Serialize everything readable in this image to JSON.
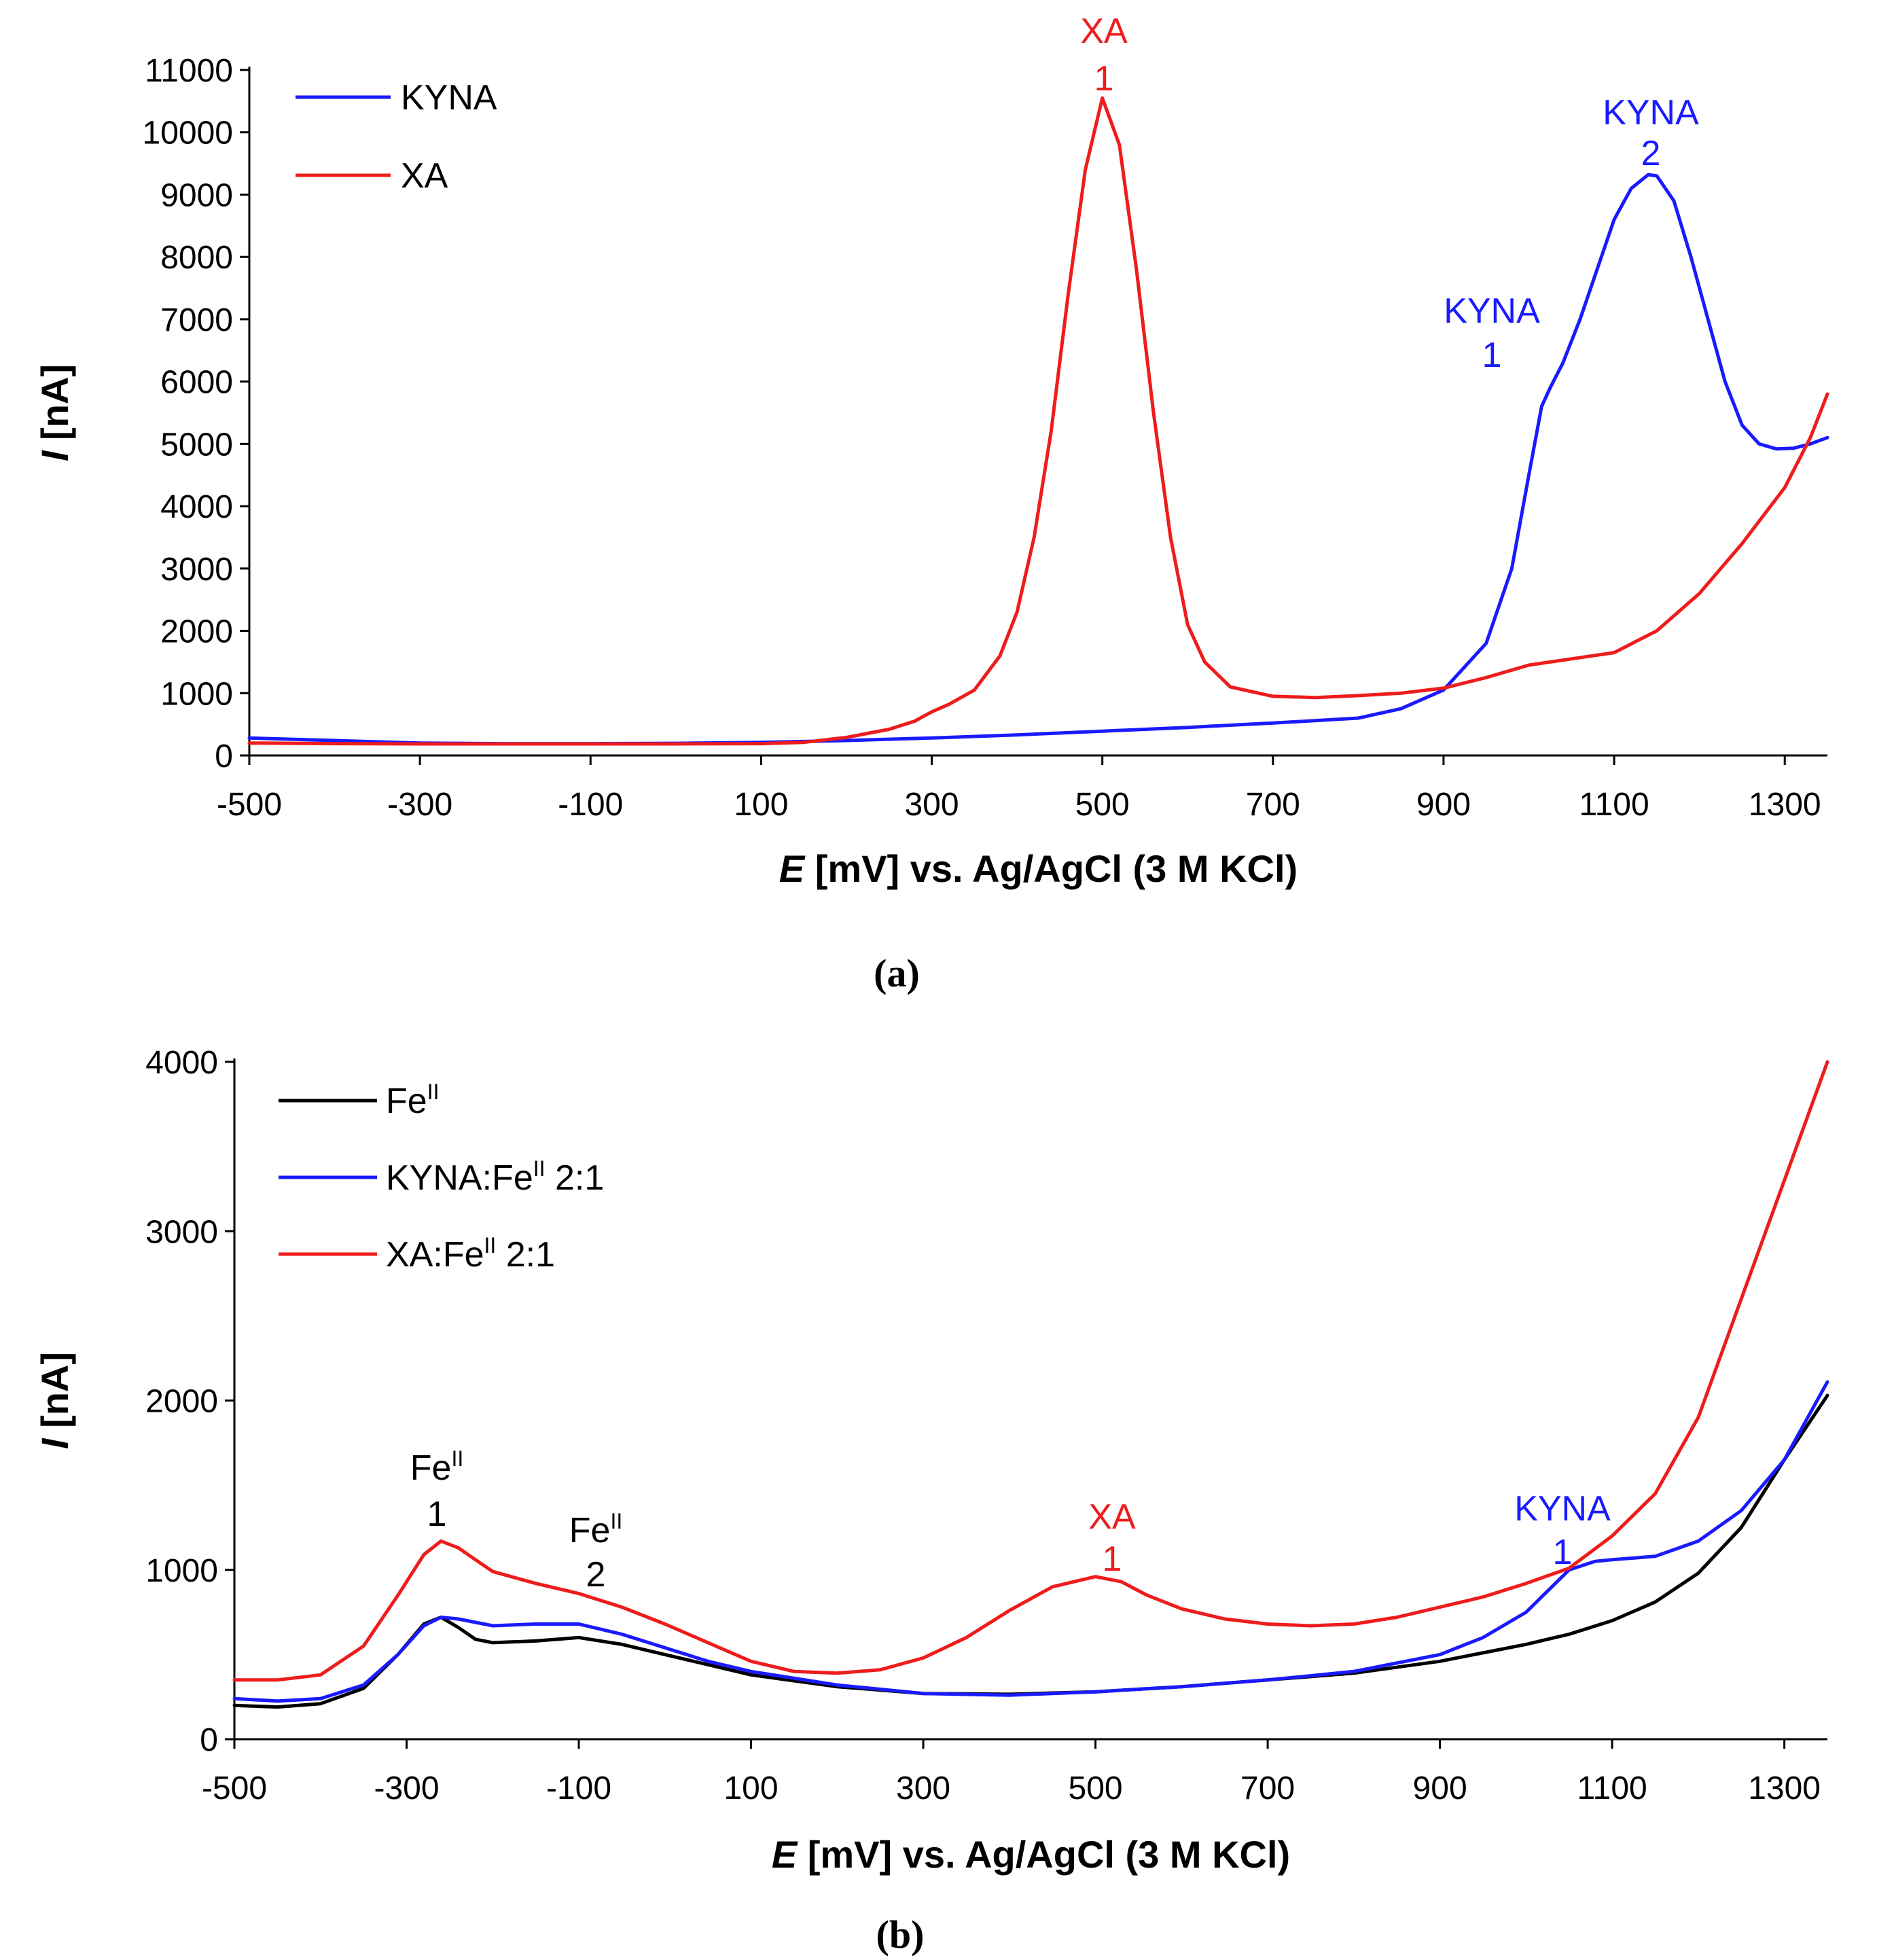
{
  "chart_data": [
    {
      "type": "line",
      "panel_label": "(a)",
      "xlabel_italic": "E",
      "xlabel_rest": " [mV] vs. Ag/AgCl (3 M KCl)",
      "ylabel_italic": "I",
      "ylabel_rest": " [nA]",
      "xlim": [
        -500,
        1350
      ],
      "ylim": [
        0,
        11000
      ],
      "xticks": [
        -500,
        -300,
        -100,
        100,
        300,
        500,
        700,
        900,
        1100,
        1300
      ],
      "yticks": [
        0,
        1000,
        2000,
        3000,
        4000,
        5000,
        6000,
        7000,
        8000,
        9000,
        10000,
        11000
      ],
      "grid": false,
      "legend_position": "top-left",
      "series": [
        {
          "name": "KYNA",
          "color": "#1a1aff",
          "x": [
            -500,
            -400,
            -300,
            -200,
            -100,
            0,
            100,
            200,
            300,
            400,
            500,
            600,
            700,
            800,
            850,
            900,
            950,
            980,
            1000,
            1015,
            1025,
            1040,
            1060,
            1080,
            1100,
            1120,
            1140,
            1150,
            1170,
            1190,
            1210,
            1230,
            1250,
            1270,
            1290,
            1310,
            1330,
            1350
          ],
          "y": [
            280,
            240,
            200,
            190,
            190,
            195,
            210,
            240,
            280,
            330,
            390,
            450,
            520,
            600,
            750,
            1050,
            1800,
            3000,
            4500,
            5600,
            5900,
            6300,
            7000,
            7800,
            8600,
            9100,
            9320,
            9300,
            8900,
            8000,
            7000,
            6000,
            5300,
            5000,
            4920,
            4930,
            5000,
            5100
          ]
        },
        {
          "name": "XA",
          "color": "#ee1c1c",
          "x": [
            -500,
            -400,
            -300,
            -200,
            -100,
            0,
            100,
            150,
            200,
            250,
            280,
            300,
            320,
            350,
            380,
            400,
            420,
            440,
            460,
            480,
            500,
            520,
            540,
            560,
            580,
            600,
            620,
            650,
            700,
            750,
            800,
            850,
            900,
            950,
            1000,
            1050,
            1100,
            1150,
            1200,
            1250,
            1300,
            1330,
            1350
          ],
          "y": [
            200,
            190,
            185,
            185,
            185,
            185,
            190,
            210,
            290,
            420,
            550,
            700,
            820,
            1050,
            1600,
            2300,
            3500,
            5200,
            7400,
            9400,
            10550,
            9800,
            7800,
            5500,
            3500,
            2100,
            1500,
            1100,
            950,
            930,
            960,
            1000,
            1080,
            1250,
            1450,
            1550,
            1650,
            2000,
            2600,
            3400,
            4300,
            5100,
            5800
          ]
        }
      ],
      "annotations": [
        {
          "text": "XA",
          "sub": "1",
          "color": "#ee1c1c"
        },
        {
          "text": "KYNA",
          "sub": "1",
          "color": "#1a1aff"
        },
        {
          "text": "KYNA",
          "sub": "2",
          "color": "#1a1aff"
        }
      ]
    },
    {
      "type": "line",
      "panel_label": "(b)",
      "xlabel_italic": "E",
      "xlabel_rest": " [mV] vs. Ag/AgCl (3 M KCl)",
      "ylabel_italic": "I",
      "ylabel_rest": " [nA]",
      "xlim": [
        -500,
        1350
      ],
      "ylim": [
        0,
        4000
      ],
      "xticks": [
        -500,
        -300,
        -100,
        100,
        300,
        500,
        700,
        900,
        1100,
        1300
      ],
      "yticks": [
        0,
        1000,
        2000,
        3000,
        4000
      ],
      "grid": false,
      "legend_position": "top-left",
      "series": [
        {
          "name": "Fe",
          "sup": "II",
          "suffix": "",
          "color": "#000000",
          "x": [
            -500,
            -450,
            -400,
            -350,
            -310,
            -280,
            -260,
            -240,
            -220,
            -200,
            -150,
            -100,
            -50,
            0,
            50,
            100,
            200,
            300,
            400,
            500,
            600,
            700,
            800,
            900,
            1000,
            1050,
            1100,
            1150,
            1200,
            1250,
            1300,
            1350
          ],
          "y": [
            200,
            190,
            210,
            300,
            500,
            680,
            720,
            660,
            590,
            570,
            580,
            600,
            560,
            500,
            440,
            380,
            310,
            270,
            265,
            280,
            310,
            350,
            390,
            460,
            560,
            620,
            700,
            810,
            980,
            1250,
            1650,
            2030
          ]
        },
        {
          "name": "KYNA:Fe",
          "sup": "II",
          "suffix": " 2:1",
          "color": "#1a1aff",
          "x": [
            -500,
            -450,
            -400,
            -350,
            -310,
            -280,
            -260,
            -240,
            -220,
            -200,
            -150,
            -100,
            -50,
            0,
            50,
            100,
            200,
            300,
            400,
            500,
            600,
            700,
            800,
            900,
            950,
            1000,
            1030,
            1050,
            1080,
            1100,
            1150,
            1200,
            1250,
            1300,
            1350
          ],
          "y": [
            240,
            225,
            240,
            320,
            500,
            670,
            720,
            710,
            690,
            670,
            680,
            680,
            620,
            540,
            460,
            400,
            320,
            270,
            260,
            280,
            310,
            350,
            400,
            500,
            600,
            750,
            900,
            1000,
            1050,
            1060,
            1080,
            1170,
            1350,
            1650,
            2110
          ]
        },
        {
          "name": "XA:Fe",
          "sup": "II",
          "suffix": " 2:1",
          "color": "#ee1c1c",
          "x": [
            -500,
            -450,
            -400,
            -350,
            -310,
            -280,
            -260,
            -240,
            -220,
            -200,
            -150,
            -100,
            -50,
            0,
            50,
            100,
            150,
            200,
            250,
            300,
            350,
            400,
            450,
            500,
            530,
            560,
            600,
            650,
            700,
            750,
            800,
            850,
            900,
            950,
            1000,
            1050,
            1100,
            1150,
            1200,
            1250,
            1300,
            1350
          ],
          "y": [
            350,
            350,
            380,
            550,
            850,
            1090,
            1170,
            1130,
            1060,
            990,
            920,
            860,
            780,
            680,
            570,
            460,
            400,
            390,
            410,
            480,
            600,
            760,
            900,
            960,
            930,
            850,
            770,
            710,
            680,
            670,
            680,
            720,
            780,
            840,
            920,
            1010,
            1200,
            1450,
            1900,
            2600,
            3300,
            4000
          ]
        }
      ],
      "annotations": [
        {
          "text": "Fe",
          "sup": "II",
          "sub": "1",
          "color": "#000000"
        },
        {
          "text": "Fe",
          "sup": "II",
          "sub": "2",
          "color": "#000000"
        },
        {
          "text": "XA",
          "sub": "1",
          "color": "#ee1c1c"
        },
        {
          "text": "KYNA",
          "sub": "1",
          "color": "#1a1aff"
        }
      ]
    }
  ]
}
